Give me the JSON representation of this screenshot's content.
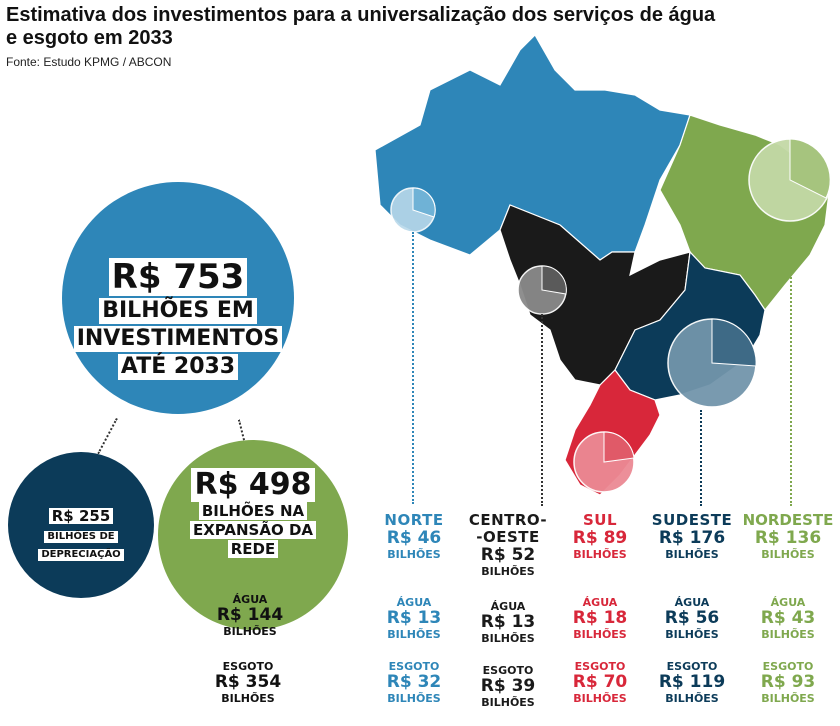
{
  "header": {
    "title": "Estimativa dos investimentos para a universalização dos serviços de água e esgoto em 2033",
    "source": "Fonte: Estudo KPMG / ABCON"
  },
  "totals": {
    "total_value": "R$ 753",
    "total_line1": "BILHÕES EM",
    "total_line2": "INVESTIMENTOS",
    "total_line3": "ATÉ 2033",
    "depreciation_value": "R$ 255",
    "depreciation_line1": "BILHÕES DE",
    "depreciation_line2": "DEPRECIAÇÃO",
    "expansion_value": "R$ 498",
    "expansion_line1": "BILHÕES NA",
    "expansion_line2": "EXPANSÃO DA",
    "expansion_line3": "REDE",
    "agua_label": "ÁGUA",
    "agua_value": "R$ 144",
    "agua_unit": "BILHÕES",
    "esgoto_label": "ESGOTO",
    "esgoto_value": "R$ 354",
    "esgoto_unit": "BILHÕES"
  },
  "regions": [
    {
      "name": "NORTE",
      "name2": "",
      "total": "R$ 46",
      "unit": "BILHÕES",
      "agua_label": "ÁGUA",
      "agua": "R$ 13",
      "agua_unit": "BILHÕES",
      "esgoto_label": "ESGOTO",
      "esgoto": "R$ 32",
      "esgoto_unit": "BILHÕES",
      "color": "#2e86b8"
    },
    {
      "name": "CENTRO-",
      "name2": "-OESTE",
      "total": "R$ 52",
      "unit": "BILHÕES",
      "agua_label": "ÁGUA",
      "agua": "R$ 13",
      "agua_unit": "BILHÕES",
      "esgoto_label": "ESGOTO",
      "esgoto": "R$ 39",
      "esgoto_unit": "BILHÕES",
      "color": "#1a1a1a"
    },
    {
      "name": "SUL",
      "name2": "",
      "total": "R$ 89",
      "unit": "BILHÕES",
      "agua_label": "ÁGUA",
      "agua": "R$ 18",
      "agua_unit": "BILHÕES",
      "esgoto_label": "ESGOTO",
      "esgoto": "R$ 70",
      "esgoto_unit": "BILHÕES",
      "color": "#d8273a"
    },
    {
      "name": "SUDESTE",
      "name2": "",
      "total": "R$ 176",
      "unit": "BILHÕES",
      "agua_label": "ÁGUA",
      "agua": "R$ 56",
      "agua_unit": "BILHÕES",
      "esgoto_label": "ESGOTO",
      "esgoto": "R$ 119",
      "esgoto_unit": "BILHÕES",
      "color": "#0c3b59"
    },
    {
      "name": "NORDESTE",
      "name2": "",
      "total": "R$ 136",
      "unit": "BILHÕES",
      "agua_label": "ÁGUA",
      "agua": "R$ 43",
      "agua_unit": "BILHÕES",
      "esgoto_label": "ESGOTO",
      "esgoto": "R$ 93",
      "esgoto_unit": "BILHÕES",
      "color": "#7fa84e"
    }
  ],
  "map_colors": {
    "norte": "#2e86b8",
    "nordeste": "#7fa84e",
    "centro_oeste": "#1a1a1a",
    "sudeste": "#0c3b59",
    "sul": "#d8273a"
  }
}
